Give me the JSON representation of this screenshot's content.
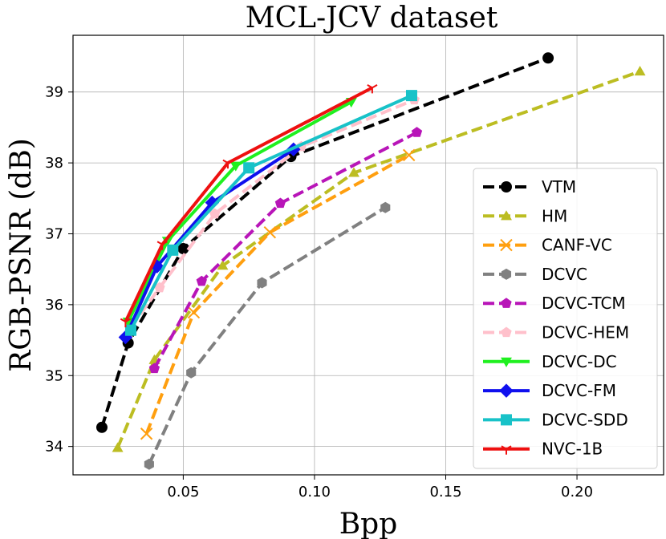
{
  "chart_data": {
    "type": "line",
    "title": "MCL-JCV dataset",
    "xlabel": "Bpp",
    "ylabel": "RGB-PSNR (dB)",
    "xlim": [
      0.008,
      0.233
    ],
    "ylim": [
      33.6,
      39.8
    ],
    "xticks": [
      0.05,
      0.1,
      0.15,
      0.2
    ],
    "xtick_labels": [
      "0.05",
      "0.10",
      "0.15",
      "0.20"
    ],
    "yticks": [
      34,
      35,
      36,
      37,
      38,
      39
    ],
    "ytick_labels": [
      "34",
      "35",
      "36",
      "37",
      "38",
      "39"
    ],
    "grid": true,
    "legend_position": "lower-right",
    "series": [
      {
        "name": "VTM",
        "color": "#000000",
        "dash": "dashed",
        "marker": "circle",
        "x": [
          0.019,
          0.029,
          0.05,
          0.091,
          0.189
        ],
        "y": [
          34.27,
          35.46,
          36.79,
          38.09,
          39.48
        ]
      },
      {
        "name": "HM",
        "color": "#bcbd22",
        "dash": "dashed",
        "marker": "triangle-up",
        "x": [
          0.025,
          0.039,
          0.065,
          0.115,
          0.224
        ],
        "y": [
          33.98,
          35.22,
          36.55,
          37.86,
          39.29
        ]
      },
      {
        "name": "CANF-VC",
        "color": "#ff9f0f",
        "dash": "dashed",
        "marker": "x",
        "x": [
          0.036,
          0.054,
          0.083,
          0.136
        ],
        "y": [
          34.18,
          35.89,
          37.02,
          38.11
        ]
      },
      {
        "name": "DCVC",
        "color": "#808080",
        "dash": "dashed",
        "marker": "hexagon",
        "x": [
          0.037,
          0.053,
          0.08,
          0.127
        ],
        "y": [
          33.75,
          35.04,
          36.31,
          37.37
        ]
      },
      {
        "name": "DCVC-TCM",
        "color": "#b815b8",
        "dash": "dashed",
        "marker": "pentagon",
        "x": [
          0.039,
          0.057,
          0.087,
          0.139
        ],
        "y": [
          35.1,
          36.33,
          37.43,
          38.43
        ]
      },
      {
        "name": "DCVC-HEM",
        "color": "#ffc0cb",
        "dash": "dashed",
        "marker": "pentagon",
        "x": [
          0.03,
          0.041,
          0.062,
          0.095,
          0.138
        ],
        "y": [
          35.68,
          36.24,
          37.28,
          38.23,
          38.89
        ]
      },
      {
        "name": "DCVC-DC",
        "color": "#1ff01f",
        "dash": "solid",
        "marker": "triangle-down",
        "x": [
          0.029,
          0.044,
          0.07,
          0.114
        ],
        "y": [
          35.76,
          36.9,
          37.96,
          38.86
        ]
      },
      {
        "name": "DCVC-FM",
        "color": "#1010ee",
        "dash": "solid",
        "marker": "diamond",
        "x": [
          0.028,
          0.04,
          0.061,
          0.092
        ],
        "y": [
          35.54,
          36.54,
          37.44,
          38.19
        ]
      },
      {
        "name": "DCVC-SDD",
        "color": "#18c2c8",
        "dash": "solid",
        "marker": "square",
        "x": [
          0.03,
          0.046,
          0.075,
          0.137
        ],
        "y": [
          35.64,
          36.77,
          37.93,
          38.95
        ]
      },
      {
        "name": "NVC-1B",
        "color": "#ee1010",
        "dash": "solid",
        "marker": "tri-down",
        "x": [
          0.028,
          0.042,
          0.067,
          0.122
        ],
        "y": [
          35.76,
          36.85,
          38.0,
          39.06
        ]
      }
    ]
  }
}
